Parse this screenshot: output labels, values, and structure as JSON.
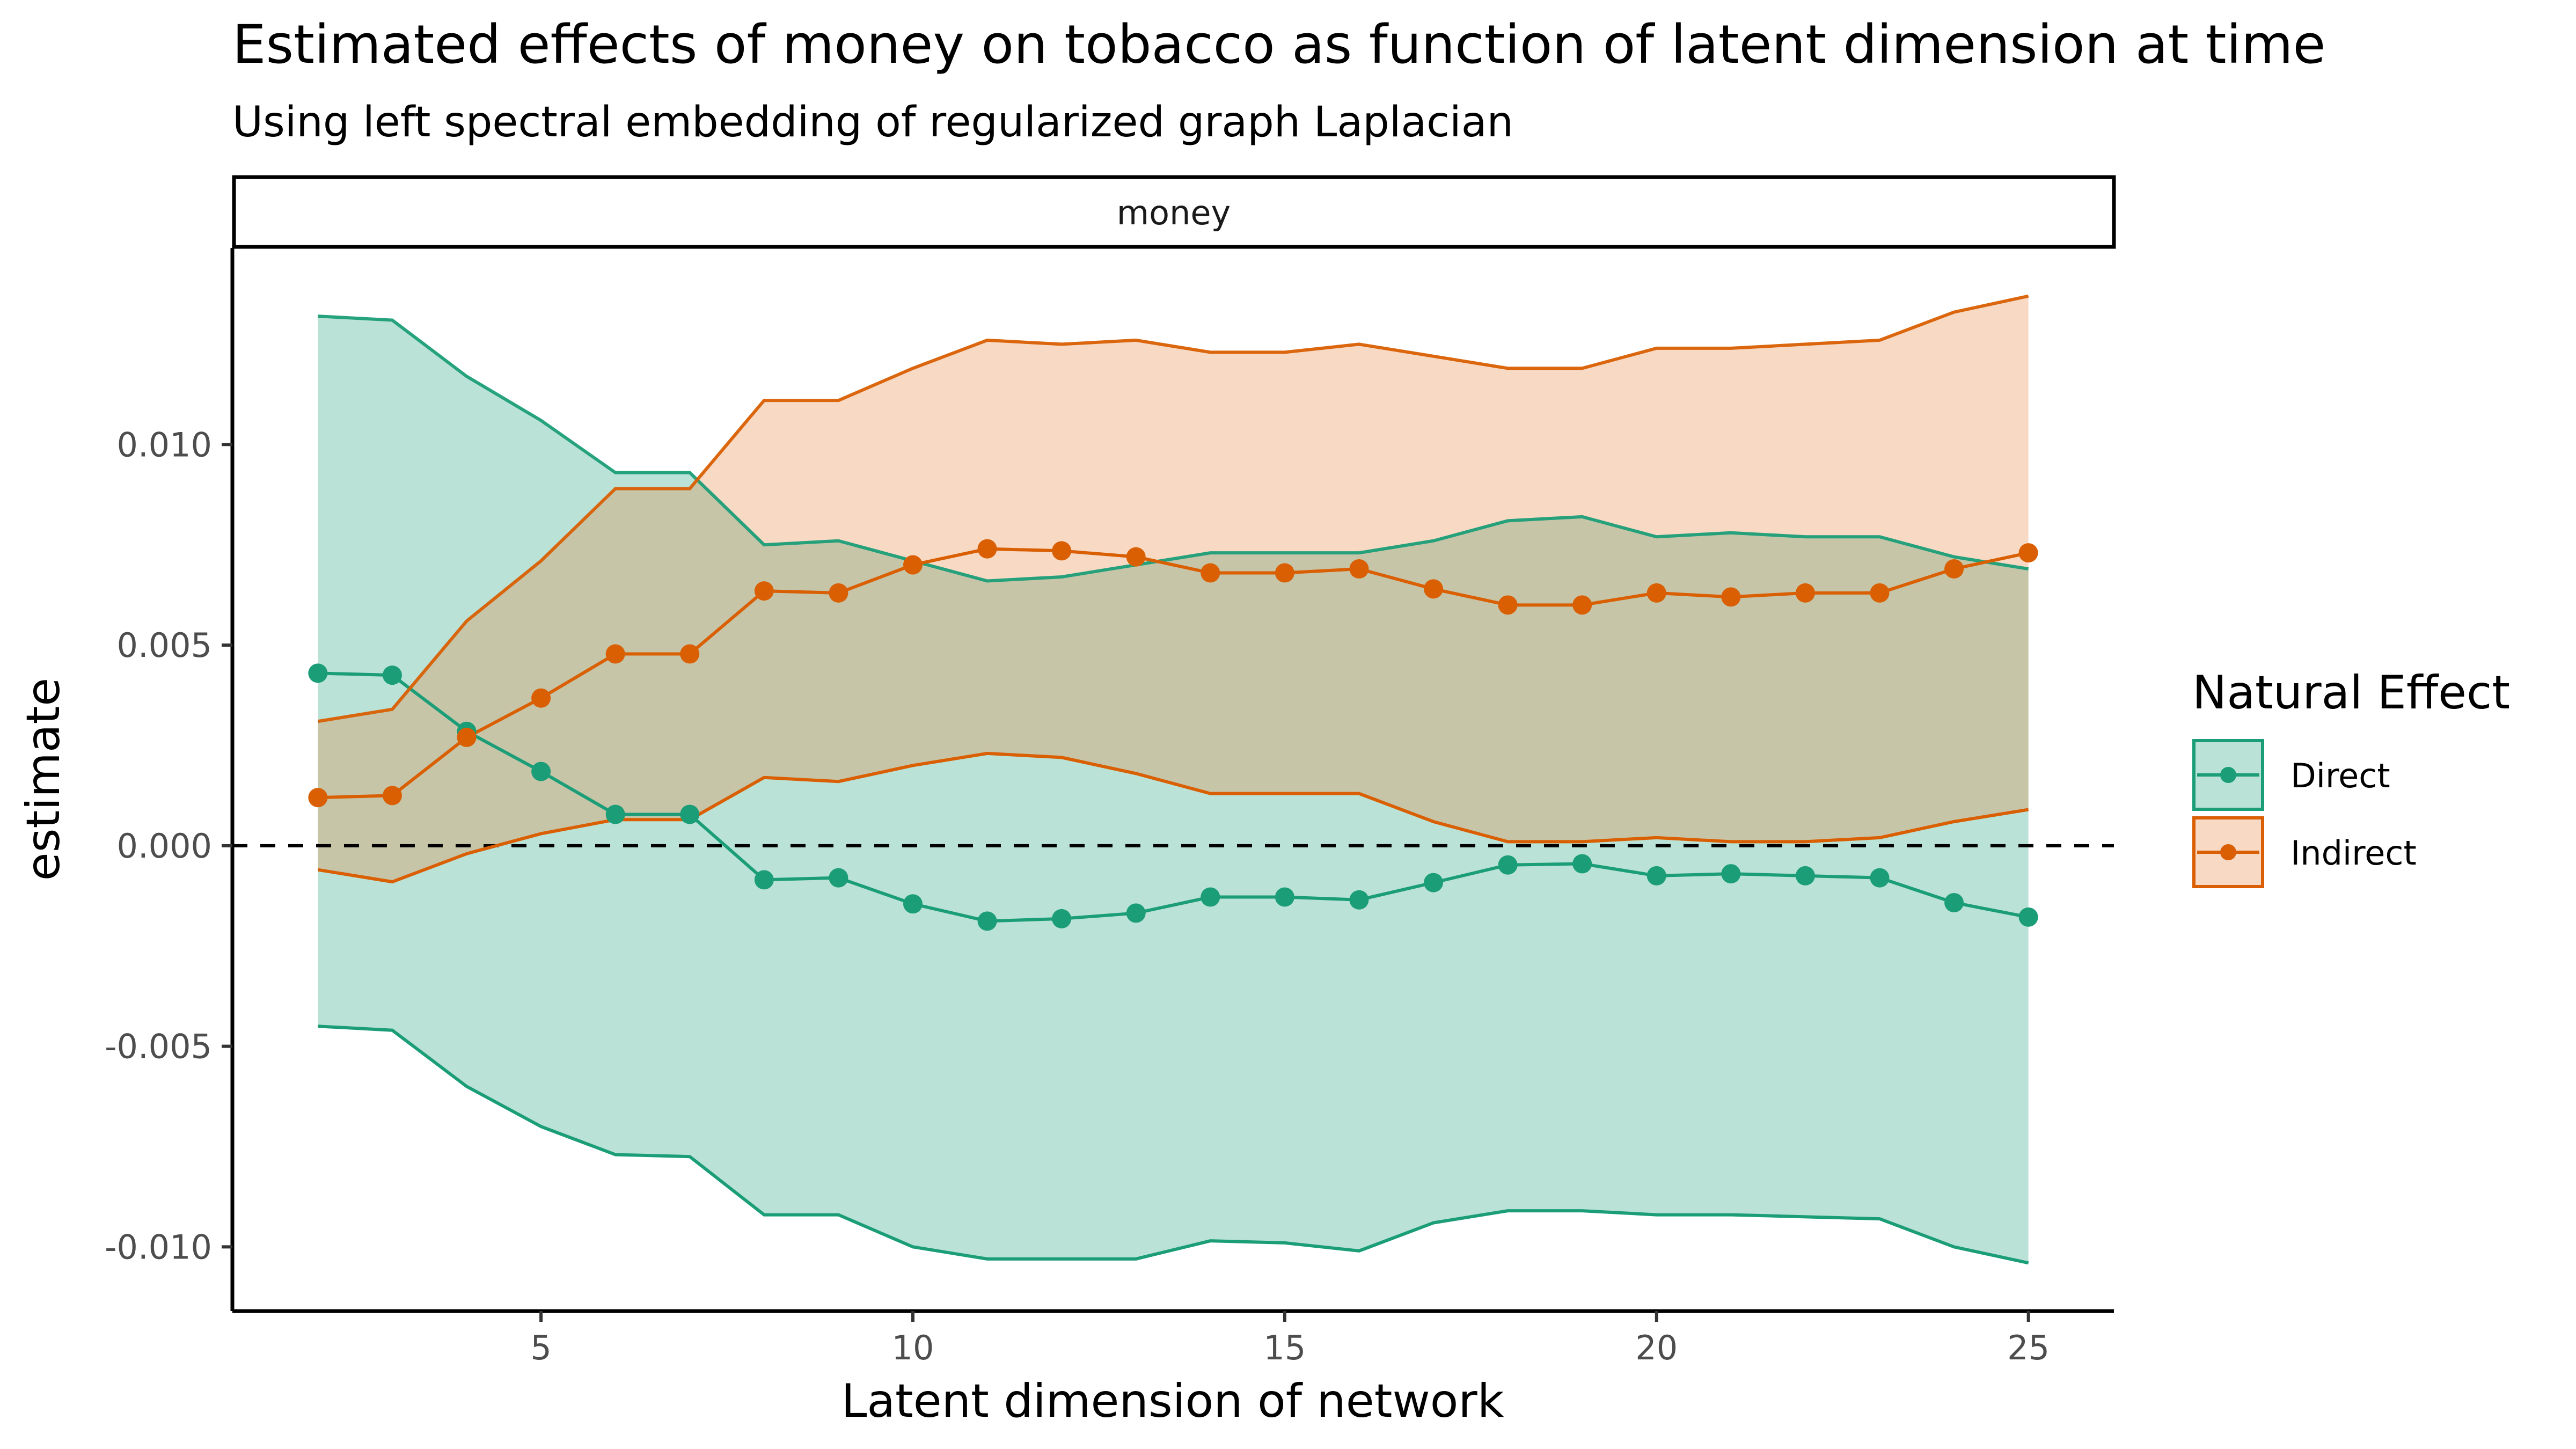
{
  "title": "Estimated effects of money on tobacco as function of latent dimension at time",
  "subtitle": "Using left spectral embedding of  regularized graph Laplacian",
  "facet_label": "money",
  "colors": {
    "direct": "#1b9e77",
    "indirect": "#d95f02",
    "direct_fill": "#1b9e77",
    "indirect_fill": "#e6813c",
    "zero_line": "#000000"
  },
  "chart_data": {
    "type": "line",
    "title": "Estimated effects of money on tobacco as function of latent dimension at time",
    "subtitle": "Using left spectral embedding of  regularized graph Laplacian",
    "facet": "money",
    "xlabel": "Latent dimension of network",
    "ylabel": "estimate",
    "xlim": [
      0.85,
      26.15
    ],
    "ylim": [
      -0.0116,
      0.0149
    ],
    "x_ticks": [
      5,
      10,
      15,
      20,
      25
    ],
    "x_tick_labels": [
      "5",
      "10",
      "15",
      "20",
      "25"
    ],
    "y_ticks": [
      -0.01,
      -0.005,
      0.0,
      0.005,
      0.01
    ],
    "y_tick_labels": [
      "-0.010",
      "-0.005",
      "0.000",
      "0.005",
      "0.010"
    ],
    "reference_line": {
      "y": 0,
      "style": "dashed"
    },
    "grid": false,
    "legend": {
      "title": "Natural Effect",
      "position": "right"
    },
    "x": [
      2,
      3,
      4,
      5,
      6,
      7,
      8,
      9,
      10,
      11,
      12,
      13,
      14,
      15,
      16,
      17,
      18,
      19,
      20,
      21,
      22,
      23,
      24,
      25
    ],
    "series": [
      {
        "name": "Direct",
        "estimate": [
          0.0043,
          0.00425,
          0.00285,
          0.00185,
          0.00078,
          0.00078,
          -0.00085,
          -0.0008,
          -0.00145,
          -0.00188,
          -0.00182,
          -0.00168,
          -0.00128,
          -0.00128,
          -0.00135,
          -0.00092,
          -0.00048,
          -0.00045,
          -0.00075,
          -0.0007,
          -0.00075,
          -0.0008,
          -0.00142,
          -0.00178
        ],
        "lower": [
          -0.0045,
          -0.0046,
          -0.006,
          -0.007,
          -0.0077,
          -0.00775,
          -0.0092,
          -0.0092,
          -0.01,
          -0.0103,
          -0.0103,
          -0.0103,
          -0.00985,
          -0.0099,
          -0.0101,
          -0.0094,
          -0.0091,
          -0.0091,
          -0.0092,
          -0.0092,
          -0.00925,
          -0.0093,
          -0.01,
          -0.0104
        ],
        "upper": [
          0.0132,
          0.0131,
          0.0117,
          0.0106,
          0.0093,
          0.0093,
          0.0075,
          0.0076,
          0.0071,
          0.0066,
          0.0067,
          0.007,
          0.0073,
          0.0073,
          0.0073,
          0.0076,
          0.0081,
          0.0082,
          0.0077,
          0.0078,
          0.0077,
          0.0077,
          0.0072,
          0.0069
        ]
      },
      {
        "name": "Indirect",
        "estimate": [
          0.0012,
          0.00125,
          0.0027,
          0.00368,
          0.00478,
          0.00478,
          0.00635,
          0.0063,
          0.007,
          0.0074,
          0.00735,
          0.0072,
          0.0068,
          0.0068,
          0.0069,
          0.0064,
          0.006,
          0.006,
          0.0063,
          0.0062,
          0.0063,
          0.0063,
          0.0069,
          0.0073
        ],
        "lower": [
          -0.0006,
          -0.0009,
          -0.0002,
          0.0003,
          0.00065,
          0.00065,
          0.0017,
          0.0016,
          0.002,
          0.0023,
          0.0022,
          0.0018,
          0.0013,
          0.0013,
          0.0013,
          0.0006,
          0.0001,
          0.0001,
          0.0002,
          0.0001,
          0.0001,
          0.0002,
          0.0006,
          0.0009
        ],
        "upper": [
          0.0031,
          0.0034,
          0.0056,
          0.0071,
          0.0089,
          0.0089,
          0.0111,
          0.0111,
          0.0119,
          0.0126,
          0.0125,
          0.0126,
          0.0123,
          0.0123,
          0.0125,
          0.0122,
          0.0119,
          0.0119,
          0.0124,
          0.0124,
          0.0125,
          0.0126,
          0.0133,
          0.0137
        ]
      }
    ]
  }
}
